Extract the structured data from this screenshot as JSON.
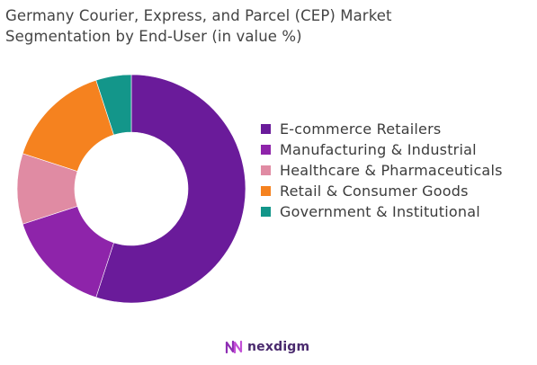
{
  "title_line1": "Germany Courier, Express, and Parcel (CEP) Market",
  "title_line2": "Segmentation by End-User (in value %)",
  "brand": "nexdigm",
  "chart_data": {
    "type": "pie",
    "title": "Germany Courier, Express, and Parcel (CEP) Market Segmentation by End-User (in value %)",
    "donut": true,
    "legend_position": "right",
    "categories": [
      "E-commerce Retailers",
      "Manufacturing & Industrial",
      "Healthcare & Pharmaceuticals",
      "Retail & Consumer Goods",
      "Government & Institutional"
    ],
    "values": [
      55,
      15,
      10,
      15,
      5
    ],
    "colors": [
      "#6a1b9a",
      "#8e24aa",
      "#e08ba3",
      "#f5821f",
      "#13968a"
    ]
  }
}
